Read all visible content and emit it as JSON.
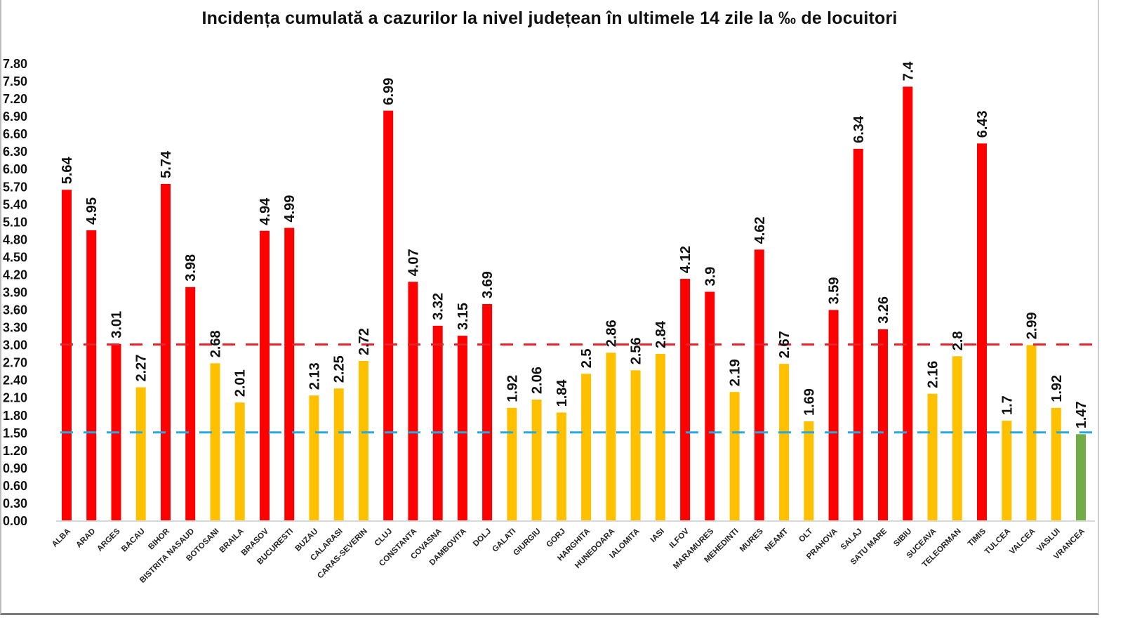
{
  "chart_data": {
    "type": "bar",
    "title": "Incidența cumulată a cazurilor la nivel județean în ultimele 14 zile la ‰ de locuitori",
    "xlabel": "",
    "ylabel": "",
    "ylim": [
      0,
      7.8
    ],
    "yticks": [
      "0.00",
      "0.30",
      "0.60",
      "0.90",
      "1.20",
      "1.50",
      "1.80",
      "2.10",
      "2.40",
      "2.70",
      "3.00",
      "3.30",
      "3.60",
      "3.90",
      "4.20",
      "4.50",
      "4.80",
      "5.10",
      "5.40",
      "5.70",
      "6.00",
      "6.30",
      "6.60",
      "6.90",
      "7.20",
      "7.50",
      "7.80"
    ],
    "grid": false,
    "legend": "none",
    "categories": [
      "ALBA",
      "ARAD",
      "ARGES",
      "BACAU",
      "BIHOR",
      "BISTRITA NASAUD",
      "BOTOSANI",
      "BRAILA",
      "BRASOV",
      "BUCURESTI",
      "BUZAU",
      "CALARASI",
      "CARAS-SEVERIN",
      "CLUJ",
      "CONSTANTA",
      "COVASNA",
      "DAMBOVITA",
      "DOLJ",
      "GALATI",
      "GIURGIU",
      "GORJ",
      "HARGHITA",
      "HUNEDOARA",
      "IALOMITA",
      "IASI",
      "ILFOV",
      "MARAMURES",
      "MEHEDINTI",
      "MURES",
      "NEAMT",
      "OLT",
      "PRAHOVA",
      "SALAJ",
      "SATU MARE",
      "SIBIU",
      "SUCEAVA",
      "TELEORMAN",
      "TIMIS",
      "TULCEA",
      "VALCEA",
      "VASLUI",
      "VRANCEA"
    ],
    "values": [
      5.64,
      4.95,
      3.01,
      2.27,
      5.74,
      3.98,
      2.68,
      2.01,
      4.94,
      4.99,
      2.13,
      2.25,
      2.72,
      6.99,
      4.07,
      3.32,
      3.15,
      3.69,
      1.92,
      2.06,
      1.84,
      2.5,
      2.86,
      2.56,
      2.84,
      4.12,
      3.9,
      2.19,
      4.62,
      2.67,
      1.69,
      3.59,
      6.34,
      3.26,
      7.4,
      2.16,
      2.8,
      6.43,
      1.7,
      2.99,
      1.92,
      1.47
    ],
    "value_labels": [
      "5.64",
      "4.95",
      "3.01",
      "2.27",
      "5.74",
      "3.98",
      "2.68",
      "2.01",
      "4.94",
      "4.99",
      "2.13",
      "2.25",
      "2.72",
      "6.99",
      "4.07",
      "3.32",
      "3.15",
      "3.69",
      "1.92",
      "2.06",
      "1.84",
      "2.5",
      "2.86",
      "2.56",
      "2.84",
      "4.12",
      "3.9",
      "2.19",
      "4.62",
      "2.67",
      "1.69",
      "3.59",
      "6.34",
      "3.26",
      "7.4",
      "2.16",
      "2.8",
      "6.43",
      "1.7",
      "2.99",
      "1.92",
      "1.47"
    ],
    "thresholds": [
      {
        "value": 3.0,
        "color": "#e8202a",
        "style": "dashed"
      },
      {
        "value": 1.5,
        "color": "#29a8e0",
        "style": "dashed"
      }
    ],
    "colors": {
      "above_3": "#ff0000",
      "between_1_5_and_3": "#ffc000",
      "below_1_5": "#70ad47"
    }
  }
}
